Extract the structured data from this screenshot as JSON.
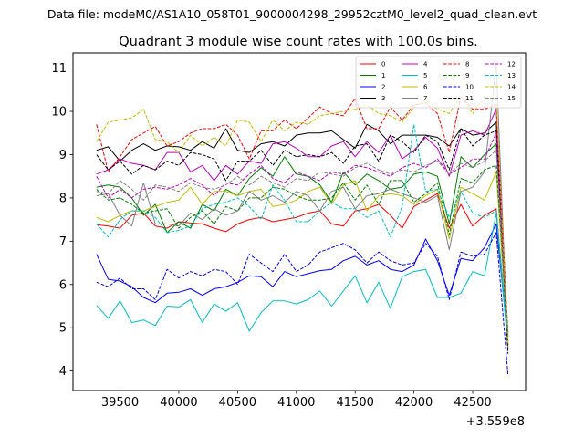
{
  "chart_data": {
    "type": "line",
    "supertitle": "Data file: modeM0/AS1A10_058T01_9000004298_29952cztM0_level2_quad_clean.evt",
    "title": "Quadrant 3 module wise count rates with 100.0s bins.",
    "xlabel": "",
    "ylabel": "",
    "x_offset_label": "+3.559e8",
    "xlim": [
      39100,
      42950
    ],
    "ylim": [
      3.55,
      11.35
    ],
    "xticks": [
      39500,
      40000,
      40500,
      41000,
      41500,
      42000,
      42500
    ],
    "yticks": [
      4,
      5,
      6,
      7,
      8,
      9,
      10,
      11
    ],
    "legend_location": "top-right",
    "x": [
      39300,
      39400,
      39500,
      39600,
      39700,
      39800,
      39900,
      40000,
      40100,
      40200,
      40300,
      40400,
      40500,
      40600,
      40700,
      40800,
      40900,
      41000,
      41100,
      41200,
      41300,
      41400,
      41500,
      41600,
      41700,
      41800,
      41900,
      42000,
      42100,
      42200,
      42300,
      42400,
      42500,
      42600,
      42700,
      42800
    ],
    "series": [
      {
        "name": "0",
        "color": "#ff0000",
        "dash": "solid",
        "values": [
          7.38,
          7.35,
          7.3,
          7.6,
          7.65,
          7.35,
          7.3,
          7.45,
          7.42,
          7.4,
          7.3,
          7.22,
          7.4,
          7.5,
          7.55,
          7.45,
          7.5,
          7.55,
          7.65,
          7.7,
          7.4,
          7.35,
          7.7,
          7.75,
          7.85,
          7.6,
          7.3,
          7.8,
          7.95,
          8.1,
          7.3,
          7.85,
          7.35,
          7.6,
          7.75,
          4.6
        ]
      },
      {
        "name": "1",
        "color": "#008000",
        "dash": "solid",
        "values": [
          8.25,
          8.3,
          8.25,
          8.0,
          7.6,
          7.85,
          7.2,
          7.45,
          7.3,
          7.85,
          7.7,
          8.2,
          8.05,
          8.45,
          8.7,
          8.5,
          8.95,
          8.55,
          8.5,
          8.3,
          7.9,
          8.6,
          8.3,
          8.55,
          8.4,
          8.2,
          8.25,
          8.55,
          8.6,
          8.5,
          7.4,
          8.95,
          8.7,
          9.0,
          9.25,
          4.8
        ]
      },
      {
        "name": "2",
        "color": "#0000ff",
        "dash": "solid",
        "values": [
          6.7,
          6.12,
          6.08,
          5.95,
          5.7,
          5.58,
          5.8,
          5.82,
          5.9,
          5.75,
          5.9,
          5.95,
          6.05,
          6.2,
          6.18,
          5.95,
          6.3,
          6.18,
          6.25,
          6.32,
          6.35,
          6.55,
          6.65,
          6.45,
          6.55,
          6.35,
          6.3,
          6.45,
          7.05,
          6.55,
          5.75,
          6.6,
          6.55,
          6.85,
          7.4,
          4.7
        ]
      },
      {
        "name": "3",
        "color": "#000000",
        "dash": "solid",
        "values": [
          9.1,
          9.18,
          8.85,
          9.1,
          9.25,
          9.1,
          9.2,
          9.18,
          9.1,
          9.3,
          9.15,
          9.6,
          9.1,
          9.05,
          9.25,
          9.3,
          9.2,
          9.45,
          9.5,
          9.5,
          9.55,
          9.35,
          9.15,
          9.7,
          9.55,
          9.25,
          9.45,
          9.45,
          9.45,
          9.4,
          9.2,
          9.6,
          9.45,
          9.5,
          9.75,
          4.5
        ]
      },
      {
        "name": "4",
        "color": "#bf00bf",
        "dash": "solid",
        "values": [
          8.55,
          8.65,
          8.9,
          8.8,
          8.75,
          8.65,
          9.05,
          9.05,
          8.6,
          8.75,
          8.4,
          8.75,
          8.55,
          8.85,
          8.8,
          9.25,
          9.3,
          9.15,
          8.95,
          8.95,
          9.2,
          9.3,
          8.95,
          9.3,
          9.05,
          9.45,
          8.9,
          9.1,
          9.4,
          9.15,
          8.5,
          9.45,
          9.55,
          9.45,
          10.05,
          4.6
        ]
      },
      {
        "name": "5",
        "color": "#00bfbf",
        "dash": "solid",
        "values": [
          5.52,
          5.22,
          5.62,
          5.12,
          5.18,
          5.05,
          5.5,
          5.48,
          5.65,
          5.12,
          5.55,
          5.38,
          5.58,
          4.92,
          5.35,
          5.62,
          5.62,
          5.55,
          5.65,
          5.85,
          5.5,
          5.85,
          6.2,
          5.58,
          6.05,
          5.45,
          6.18,
          6.3,
          6.35,
          5.7,
          5.7,
          5.8,
          6.3,
          6.2,
          7.65,
          4.55
        ]
      },
      {
        "name": "6",
        "color": "#bfbf00",
        "dash": "solid",
        "values": [
          7.55,
          7.45,
          7.6,
          7.7,
          7.7,
          7.8,
          7.9,
          7.95,
          8.25,
          7.85,
          8.15,
          8.15,
          8.05,
          8.15,
          8.2,
          7.8,
          7.85,
          7.95,
          8.15,
          8.25,
          7.85,
          8.3,
          8.4,
          7.7,
          8.05,
          8.1,
          8.05,
          7.85,
          8.05,
          8.2,
          7.05,
          8.25,
          8.1,
          7.95,
          8.6,
          4.6
        ]
      },
      {
        "name": "7",
        "color": "#808080",
        "dash": "solid",
        "values": [
          8.05,
          8.1,
          7.6,
          7.35,
          8.35,
          7.4,
          7.4,
          7.35,
          7.65,
          7.5,
          7.75,
          7.6,
          7.7,
          8.15,
          7.95,
          8.05,
          7.9,
          8.15,
          8.05,
          7.7,
          8.15,
          8.25,
          7.75,
          8.05,
          8.1,
          8.2,
          8.1,
          8.0,
          7.9,
          8.05,
          6.8,
          8.15,
          8.25,
          8.6,
          11.1,
          4.45
        ]
      },
      {
        "name": "8",
        "color": "#ff0000",
        "dash": "dashed",
        "values": [
          9.7,
          8.6,
          8.95,
          9.35,
          9.5,
          9.65,
          9.2,
          9.3,
          9.5,
          9.6,
          9.6,
          9.7,
          9.45,
          8.9,
          9.55,
          9.55,
          9.8,
          9.6,
          9.85,
          10.1,
          9.95,
          9.9,
          10.3,
          9.6,
          9.6,
          10.1,
          9.8,
          10.15,
          10.2,
          9.95,
          9.05,
          10.35,
          10.05,
          10.05,
          10.15,
          4.85
        ]
      },
      {
        "name": "9",
        "color": "#008000",
        "dash": "dashed",
        "values": [
          8.2,
          7.95,
          8.0,
          7.85,
          7.65,
          7.7,
          7.75,
          7.3,
          7.55,
          7.7,
          7.4,
          7.8,
          7.7,
          8.0,
          8.0,
          8.25,
          8.2,
          8.05,
          7.95,
          7.95,
          8.0,
          8.35,
          7.95,
          8.3,
          7.85,
          8.4,
          8.4,
          7.9,
          8.1,
          8.35,
          7.15,
          8.45,
          8.35,
          8.65,
          8.75,
          4.9
        ]
      },
      {
        "name": "10",
        "color": "#0000ff",
        "dash": "dashed",
        "values": [
          6.05,
          5.95,
          6.15,
          5.9,
          5.9,
          5.65,
          6.35,
          6.15,
          6.3,
          6.2,
          6.35,
          6.3,
          6.0,
          6.7,
          6.5,
          6.3,
          6.7,
          6.3,
          6.45,
          6.75,
          6.85,
          6.95,
          6.8,
          6.5,
          6.75,
          6.55,
          6.45,
          6.5,
          6.95,
          6.65,
          5.65,
          6.75,
          6.65,
          6.7,
          7.2,
          3.9
        ]
      },
      {
        "name": "11",
        "color": "#000000",
        "dash": "dashed",
        "values": [
          9.0,
          8.65,
          8.85,
          8.55,
          8.75,
          8.65,
          8.85,
          8.75,
          9.05,
          9.0,
          8.9,
          8.4,
          8.85,
          8.85,
          9.1,
          8.75,
          9.1,
          8.95,
          9.0,
          8.95,
          9.05,
          8.8,
          9.2,
          9.25,
          8.85,
          9.45,
          9.3,
          9.05,
          9.45,
          9.3,
          8.65,
          9.6,
          9.2,
          9.45,
          9.55,
          4.4
        ]
      },
      {
        "name": "12",
        "color": "#bf00bf",
        "dash": "dashed",
        "values": [
          8.5,
          8.0,
          8.2,
          8.0,
          8.2,
          8.25,
          8.2,
          8.3,
          8.45,
          8.3,
          8.05,
          8.35,
          8.3,
          8.55,
          8.75,
          8.45,
          8.35,
          8.6,
          8.5,
          8.4,
          8.6,
          8.55,
          8.75,
          8.7,
          8.6,
          8.5,
          8.7,
          8.8,
          8.7,
          8.9,
          8.55,
          8.7,
          8.9,
          8.9,
          9.5,
          4.7
        ]
      },
      {
        "name": "13",
        "color": "#00bfbf",
        "dash": "dashed",
        "values": [
          7.4,
          7.1,
          7.5,
          7.7,
          7.7,
          7.55,
          7.2,
          7.25,
          7.35,
          7.75,
          7.85,
          7.9,
          8.0,
          7.8,
          7.5,
          8.3,
          7.95,
          7.45,
          7.45,
          7.7,
          7.9,
          7.75,
          7.75,
          7.55,
          7.7,
          7.1,
          7.8,
          9.7,
          8.15,
          8.2,
          7.55,
          8.15,
          7.65,
          7.55,
          7.7,
          4.8
        ]
      },
      {
        "name": "14",
        "color": "#bfbf00",
        "dash": "dashed",
        "values": [
          9.3,
          9.75,
          9.8,
          9.85,
          10.05,
          9.35,
          9.3,
          9.05,
          9.45,
          9.2,
          9.4,
          9.2,
          9.8,
          9.75,
          9.3,
          9.8,
          9.55,
          9.75,
          9.7,
          9.9,
          9.95,
          10.0,
          10.05,
          10.15,
          9.95,
          9.9,
          9.75,
          10.1,
          10.25,
          10.05,
          9.95,
          10.35,
          9.95,
          10.35,
          10.3,
          4.65
        ]
      },
      {
        "name": "15",
        "color": "#808080",
        "dash": "dashed",
        "values": [
          8.15,
          8.1,
          8.4,
          8.2,
          7.95,
          8.3,
          8.25,
          8.15,
          8.35,
          8.25,
          8.2,
          8.3,
          8.5,
          8.3,
          8.5,
          8.35,
          8.25,
          8.45,
          8.4,
          8.6,
          8.55,
          8.5,
          8.7,
          8.8,
          8.65,
          8.55,
          8.65,
          8.6,
          8.75,
          8.85,
          8.55,
          8.8,
          8.7,
          8.85,
          9.1,
          4.75
        ]
      }
    ]
  }
}
